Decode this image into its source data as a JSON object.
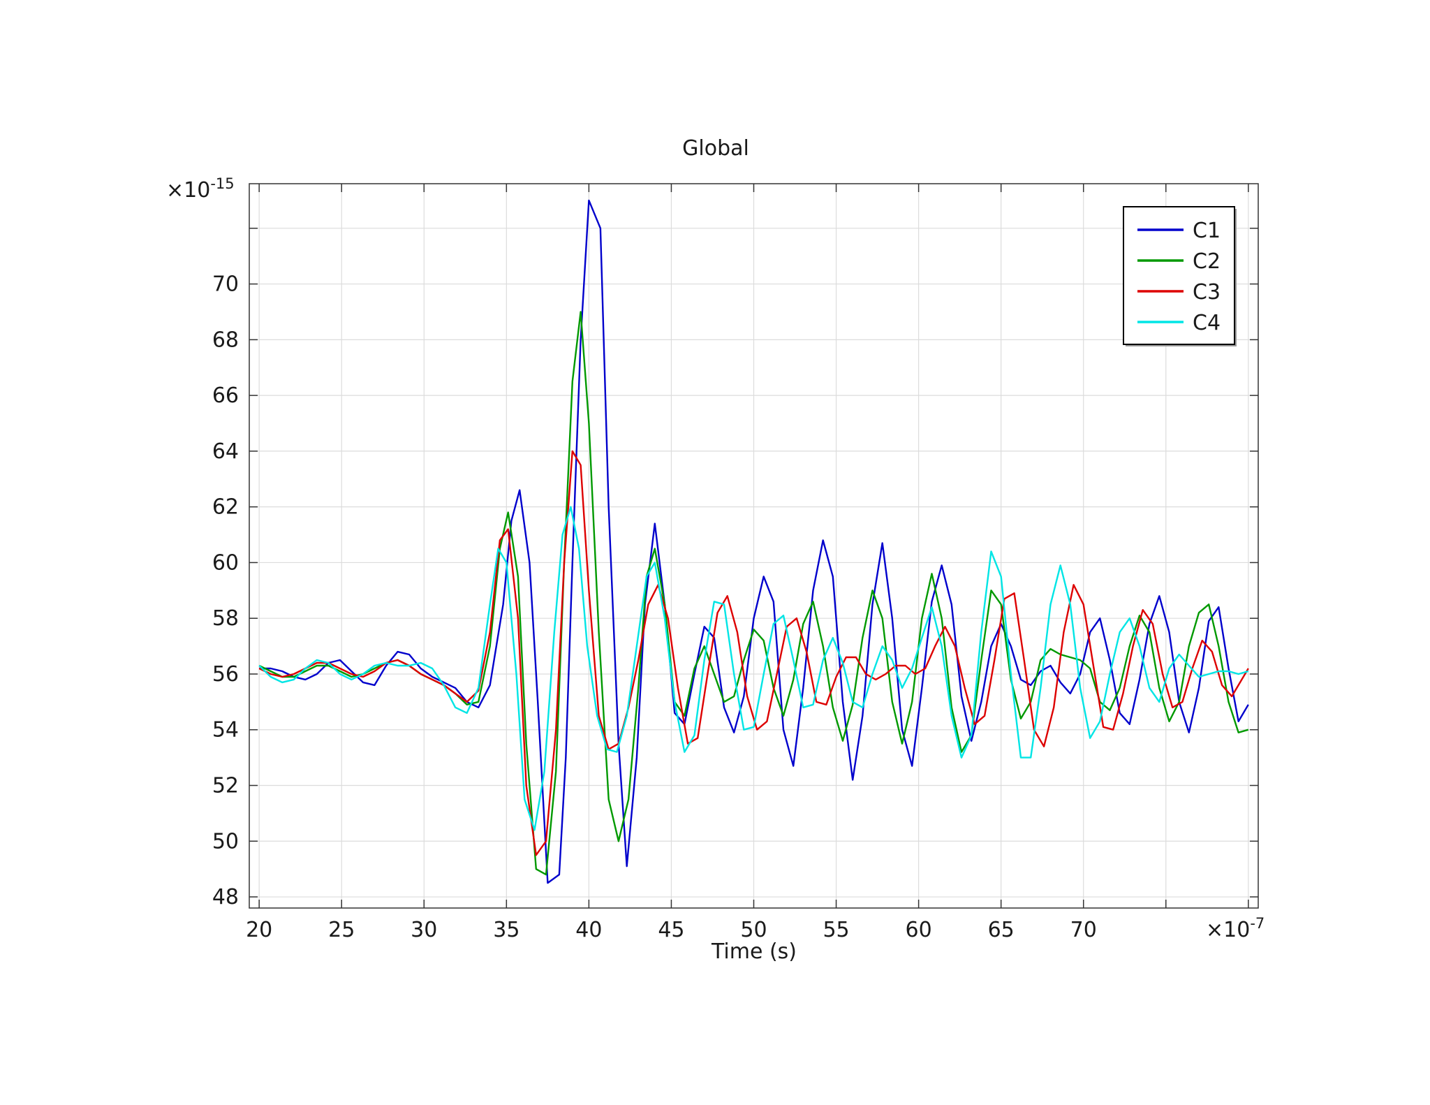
{
  "chart_data": {
    "type": "line",
    "title": "Global",
    "xlabel": "Time (s)",
    "ylabel": "",
    "x_multiplier": "×10",
    "x_multiplier_exponent": "-7",
    "y_multiplier": "×10",
    "y_multiplier_exponent": "-15",
    "xlim": [
      19.4,
      80.6
    ],
    "ylim": [
      47.6,
      73.6
    ],
    "x_ticks": [
      20,
      25,
      30,
      35,
      40,
      45,
      50,
      55,
      60,
      65,
      70,
      75,
      80
    ],
    "x_tick_labels": [
      "20",
      "25",
      "30",
      "35",
      "40",
      "45",
      "50",
      "55",
      "60",
      "65",
      "70"
    ],
    "y_ticks": [
      48,
      50,
      52,
      54,
      56,
      58,
      60,
      62,
      64,
      66,
      68,
      70,
      72
    ],
    "y_tick_labels": [
      "48",
      "50",
      "52",
      "54",
      "56",
      "58",
      "60",
      "62",
      "64",
      "66",
      "68",
      "70"
    ],
    "grid": true,
    "legend_position": "top-right",
    "series": [
      {
        "name": "C1",
        "color": "#0000cc",
        "x": [
          20,
          20.7,
          21.4,
          22.1,
          22.8,
          23.5,
          24.2,
          24.9,
          25.6,
          26.3,
          27,
          27.7,
          28.4,
          29.1,
          29.8,
          30.5,
          31.2,
          31.9,
          32.6,
          33.3,
          34,
          34.8,
          35.3,
          35.8,
          36.4,
          36.9,
          37.5,
          38.2,
          38.6,
          39.0,
          39.5,
          40.0,
          40.7,
          41.2,
          41.8,
          42.3,
          42.9,
          43.4,
          44.0,
          44.6,
          45.2,
          45.8,
          46.4,
          47.0,
          47.6,
          48.2,
          48.8,
          49.4,
          50.0,
          50.6,
          51.2,
          51.8,
          52.4,
          53.0,
          53.6,
          54.2,
          54.8,
          55.4,
          56.0,
          56.6,
          57.2,
          57.8,
          58.4,
          59.0,
          59.6,
          60.2,
          60.8,
          61.4,
          62.0,
          62.6,
          63.2,
          63.8,
          64.4,
          65.0,
          65.6,
          66.2,
          66.8,
          67.4,
          68.0,
          68.6,
          69.2,
          69.8,
          70.4,
          71.0,
          71.6,
          72.2,
          72.8,
          73.4,
          74.0,
          74.6,
          75.2,
          75.8,
          76.4,
          77.0,
          77.6,
          78.2,
          78.8,
          79.4,
          80.0
        ],
        "y": [
          56.2,
          56.2,
          56.1,
          55.9,
          55.8,
          56.0,
          56.4,
          56.5,
          56.1,
          55.7,
          55.6,
          56.3,
          56.8,
          56.7,
          56.2,
          55.9,
          55.7,
          55.5,
          55.0,
          54.8,
          55.6,
          58.5,
          61.5,
          62.6,
          60.0,
          55.0,
          48.5,
          48.8,
          53.0,
          60.0,
          68.0,
          73.0,
          72.0,
          62.0,
          53.5,
          49.1,
          53.0,
          58.5,
          61.4,
          58.5,
          54.6,
          54.2,
          56.0,
          57.7,
          57.3,
          54.8,
          53.9,
          55.2,
          58.0,
          59.5,
          58.6,
          54.0,
          52.7,
          55.5,
          59.0,
          60.8,
          59.5,
          55.0,
          52.2,
          54.5,
          58.5,
          60.7,
          58.0,
          54.0,
          52.7,
          55.5,
          58.6,
          59.9,
          58.5,
          55.2,
          53.6,
          55.0,
          57.0,
          57.8,
          57.0,
          55.8,
          55.6,
          56.1,
          56.3,
          55.7,
          55.3,
          56.0,
          57.5,
          58.0,
          56.5,
          54.6,
          54.2,
          55.8,
          57.8,
          58.8,
          57.5,
          55.0,
          53.9,
          55.5,
          57.9,
          58.4,
          56.2,
          54.3,
          54.9
        ]
      },
      {
        "name": "C2",
        "color": "#009900",
        "x": [
          20,
          20.7,
          21.4,
          22.1,
          22.8,
          23.5,
          24.2,
          24.9,
          25.6,
          26.3,
          27,
          27.7,
          28.4,
          29.1,
          29.8,
          30.5,
          31.2,
          31.9,
          32.6,
          33.3,
          34,
          34.6,
          35.1,
          35.7,
          36.2,
          36.8,
          37.4,
          38.0,
          38.5,
          39.0,
          39.5,
          40.0,
          40.6,
          41.2,
          41.8,
          42.4,
          43.0,
          43.5,
          44.0,
          44.6,
          45.2,
          45.8,
          46.4,
          47.0,
          47.6,
          48.2,
          48.8,
          49.4,
          50.0,
          50.6,
          51.2,
          51.8,
          52.4,
          53.0,
          53.6,
          54.2,
          54.8,
          55.4,
          56.0,
          56.6,
          57.2,
          57.8,
          58.4,
          59.0,
          59.6,
          60.2,
          60.8,
          61.4,
          62.0,
          62.6,
          63.2,
          63.8,
          64.4,
          65.0,
          65.6,
          66.2,
          66.8,
          67.4,
          68.0,
          68.6,
          69.2,
          69.8,
          70.4,
          71.0,
          71.6,
          72.2,
          72.8,
          73.4,
          74.0,
          74.6,
          75.2,
          75.8,
          76.4,
          77.0,
          77.6,
          78.2,
          78.8,
          79.4,
          80.0
        ],
        "y": [
          56.3,
          56.1,
          55.9,
          55.9,
          56.1,
          56.3,
          56.3,
          56.1,
          55.9,
          56.0,
          56.2,
          56.4,
          56.5,
          56.3,
          56.0,
          55.8,
          55.6,
          55.3,
          54.9,
          55.0,
          57.0,
          60.5,
          61.8,
          59.5,
          53.5,
          49.0,
          48.8,
          52.5,
          60.0,
          66.5,
          69.0,
          65.0,
          57.5,
          51.5,
          50.0,
          51.5,
          55.5,
          59.5,
          60.5,
          58.5,
          55.0,
          54.5,
          56.2,
          57.0,
          56.0,
          55.0,
          55.2,
          56.5,
          57.6,
          57.2,
          55.5,
          54.5,
          55.8,
          57.8,
          58.6,
          57.0,
          54.8,
          53.6,
          54.9,
          57.3,
          59.0,
          58.0,
          55.0,
          53.5,
          55.0,
          58.0,
          59.6,
          58.0,
          54.8,
          53.2,
          53.8,
          56.5,
          59.0,
          58.5,
          55.8,
          54.4,
          55.0,
          56.5,
          56.9,
          56.7,
          56.6,
          56.5,
          56.2,
          55.0,
          54.7,
          55.5,
          57.0,
          58.1,
          57.5,
          55.5,
          54.3,
          55.0,
          57.0,
          58.2,
          58.5,
          57.0,
          55.0,
          53.9,
          54.0
        ]
      },
      {
        "name": "C3",
        "color": "#dd0000",
        "x": [
          20,
          20.7,
          21.4,
          22.1,
          22.8,
          23.5,
          24.2,
          24.9,
          25.6,
          26.3,
          27,
          27.7,
          28.4,
          29.1,
          29.8,
          30.5,
          31.2,
          31.9,
          32.6,
          33.3,
          34,
          34.6,
          35.1,
          35.7,
          36.2,
          36.8,
          37.4,
          38.0,
          38.5,
          39.0,
          39.5,
          40.0,
          40.6,
          41.2,
          41.8,
          42.4,
          43.0,
          43.6,
          44.2,
          44.8,
          45.4,
          46.0,
          46.6,
          47.2,
          47.8,
          48.4,
          49.0,
          49.6,
          50.2,
          50.8,
          51.4,
          52.0,
          52.6,
          53.2,
          53.8,
          54.4,
          55.0,
          55.6,
          56.2,
          56.8,
          57.4,
          58.0,
          58.6,
          59.2,
          59.8,
          60.4,
          61.0,
          61.6,
          62.2,
          62.8,
          63.4,
          64.0,
          64.6,
          65.2,
          65.8,
          66.4,
          67.0,
          67.6,
          68.2,
          68.8,
          69.4,
          70.0,
          70.6,
          71.2,
          71.8,
          72.4,
          73.0,
          73.6,
          74.2,
          74.8,
          75.4,
          76.0,
          76.6,
          77.2,
          77.8,
          78.4,
          79.0,
          79.6,
          80.0
        ],
        "y": [
          56.2,
          56.0,
          55.9,
          56.0,
          56.2,
          56.4,
          56.4,
          56.2,
          56.0,
          55.9,
          56.1,
          56.4,
          56.5,
          56.3,
          56.0,
          55.8,
          55.6,
          55.3,
          55.0,
          55.4,
          57.5,
          60.8,
          61.2,
          58.0,
          52.0,
          49.5,
          50.0,
          54.0,
          60.0,
          64.0,
          63.5,
          59.0,
          54.5,
          53.3,
          53.5,
          54.8,
          56.5,
          58.5,
          59.2,
          58.0,
          55.5,
          53.5,
          53.7,
          56.0,
          58.2,
          58.8,
          57.5,
          55.2,
          54.0,
          54.3,
          56.0,
          57.7,
          58.0,
          56.8,
          55.0,
          54.9,
          55.9,
          56.6,
          56.6,
          56.0,
          55.8,
          56.0,
          56.3,
          56.3,
          56.0,
          56.2,
          57.0,
          57.7,
          57.0,
          55.5,
          54.2,
          54.5,
          56.5,
          58.7,
          58.9,
          56.5,
          54.0,
          53.4,
          54.8,
          57.5,
          59.2,
          58.5,
          56.3,
          54.1,
          54.0,
          55.3,
          57.0,
          58.3,
          57.8,
          56.0,
          54.8,
          55.0,
          56.2,
          57.2,
          56.8,
          55.6,
          55.2,
          55.8,
          56.2
        ]
      },
      {
        "name": "C4",
        "color": "#00e5e5",
        "x": [
          20,
          20.7,
          21.4,
          22.1,
          22.8,
          23.5,
          24.2,
          24.9,
          25.6,
          26.3,
          27,
          27.7,
          28.4,
          29.1,
          29.8,
          30.5,
          31.2,
          31.9,
          32.6,
          33.3,
          34,
          34.5,
          35.0,
          35.6,
          36.1,
          36.7,
          37.3,
          37.9,
          38.4,
          38.9,
          39.4,
          39.9,
          40.5,
          41.1,
          41.7,
          42.3,
          42.9,
          43.5,
          44.0,
          44.6,
          45.2,
          45.8,
          46.4,
          47.0,
          47.6,
          48.2,
          48.8,
          49.4,
          50.0,
          50.6,
          51.2,
          51.8,
          52.4,
          53.0,
          53.6,
          54.2,
          54.8,
          55.4,
          56.0,
          56.6,
          57.2,
          57.8,
          58.4,
          59.0,
          59.6,
          60.2,
          60.8,
          61.4,
          62.0,
          62.6,
          63.2,
          63.8,
          64.4,
          65.0,
          65.6,
          66.2,
          66.8,
          67.4,
          68.0,
          68.6,
          69.2,
          69.8,
          70.4,
          71.0,
          71.6,
          72.2,
          72.8,
          73.4,
          74.0,
          74.6,
          75.2,
          75.8,
          76.4,
          77.0,
          77.6,
          78.2,
          78.8,
          79.4,
          80.0
        ],
        "y": [
          56.3,
          55.9,
          55.7,
          55.8,
          56.2,
          56.5,
          56.4,
          56.0,
          55.8,
          56.0,
          56.3,
          56.4,
          56.3,
          56.3,
          56.4,
          56.2,
          55.6,
          54.8,
          54.6,
          55.5,
          58.5,
          60.5,
          60.0,
          56.0,
          51.5,
          50.4,
          52.5,
          57.5,
          61.0,
          62.0,
          60.5,
          57.0,
          54.5,
          53.3,
          53.2,
          54.5,
          57.0,
          59.5,
          60.0,
          58.0,
          55.0,
          53.2,
          53.8,
          56.5,
          58.6,
          58.5,
          56.0,
          54.0,
          54.1,
          56.0,
          57.8,
          58.1,
          56.5,
          54.8,
          54.9,
          56.5,
          57.3,
          56.4,
          55.0,
          54.8,
          56.0,
          57.0,
          56.5,
          55.5,
          56.2,
          57.3,
          58.4,
          57.0,
          54.5,
          53.0,
          53.8,
          57.5,
          60.4,
          59.5,
          56.0,
          53.0,
          53.0,
          55.5,
          58.5,
          59.9,
          58.5,
          55.5,
          53.7,
          54.3,
          56.0,
          57.5,
          58.0,
          57.0,
          55.5,
          55.0,
          56.2,
          56.7,
          56.3,
          55.9,
          56.0,
          56.1,
          56.1,
          56.0,
          56.1
        ]
      }
    ]
  }
}
